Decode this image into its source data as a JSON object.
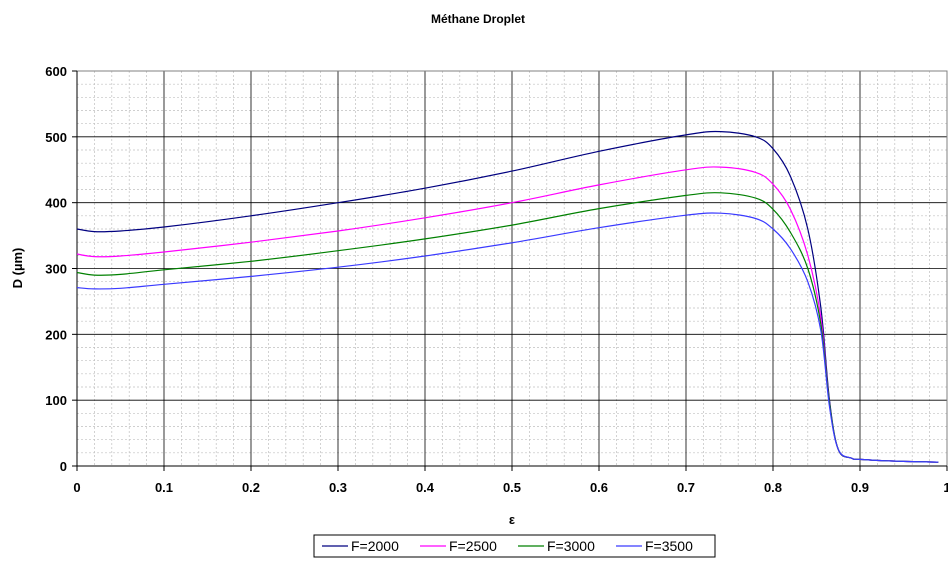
{
  "chart_data": {
    "type": "line",
    "title": "Méthane Droplet",
    "xlabel": "ε",
    "ylabel": "D (µm)",
    "xlim": [
      0,
      1
    ],
    "ylim": [
      0,
      600
    ],
    "x_ticks": [
      "0",
      "0.1",
      "0.2",
      "0.3",
      "0.4",
      "0.5",
      "0.6",
      "0.7",
      "0.8",
      "0.9",
      "1"
    ],
    "y_ticks": [
      "0",
      "100",
      "200",
      "300",
      "400",
      "500",
      "600"
    ],
    "grid": true,
    "minor_grid": true,
    "legend_position": "bottom",
    "x": [
      0.0,
      0.02,
      0.05,
      0.1,
      0.2,
      0.3,
      0.4,
      0.5,
      0.6,
      0.7,
      0.74,
      0.78,
      0.8,
      0.82,
      0.84,
      0.855,
      0.865,
      0.875,
      0.89,
      0.9,
      0.95,
      0.99
    ],
    "series": [
      {
        "name": "F=2000",
        "color": "#000080",
        "values": [
          360,
          356,
          357,
          363,
          380,
          400,
          422,
          448,
          478,
          503,
          508,
          500,
          482,
          440,
          360,
          240,
          100,
          25,
          12,
          10,
          7,
          6
        ]
      },
      {
        "name": "F=2500",
        "color": "#ff00ff",
        "values": [
          322,
          318,
          319,
          325,
          340,
          357,
          377,
          400,
          427,
          450,
          454,
          446,
          428,
          390,
          320,
          225,
          95,
          25,
          12,
          10,
          7,
          6
        ]
      },
      {
        "name": "F=3000",
        "color": "#008000",
        "values": [
          294,
          290,
          291,
          298,
          311,
          327,
          345,
          366,
          391,
          411,
          415,
          407,
          390,
          355,
          300,
          215,
          95,
          25,
          12,
          10,
          7,
          6
        ]
      },
      {
        "name": "F=3500",
        "color": "#3a3aff",
        "values": [
          271,
          269,
          270,
          276,
          288,
          302,
          319,
          339,
          362,
          381,
          384,
          376,
          360,
          330,
          280,
          205,
          90,
          25,
          12,
          10,
          7,
          6
        ]
      }
    ]
  }
}
